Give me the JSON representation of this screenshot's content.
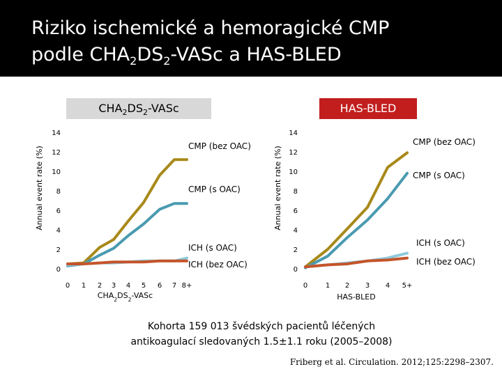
{
  "slide": {
    "title_line1": "Riziko ischemické a hemoragické CMP",
    "title_line2_pre": "podle CHA",
    "title_line2_sub1": "2",
    "title_line2_mid": "DS",
    "title_line2_sub2": "2",
    "title_line2_post": "-VASc a HAS-BLED",
    "footnote_line1": "Kohorta 159 013 švédských pacientů léčených",
    "footnote_line2": "antikoagulací sledovaných 1.5±1.1 roku (2005–2008)",
    "citation": "Friberg et al. Circulation. 2012;125:2298–2307."
  },
  "badges": {
    "left": {
      "pre": "CHA",
      "sub1": "2",
      "mid": "DS",
      "sub2": "2",
      "post": "-VASc"
    },
    "right": {
      "label": "HAS-BLED"
    }
  },
  "colors": {
    "cmp_bez_oac": "#a8891a",
    "cmp_s_oac": "#4a9ab0",
    "ich_s_oac": "#8ec9dc",
    "ich_bez_oac": "#c5542a",
    "header_bg": "#000000",
    "badge_red": "#c21e1e",
    "badge_grey": "#d8d8d8"
  },
  "chart_data": [
    {
      "type": "line",
      "ylabel": "Annual event rate (%)",
      "xlabel_pre": "CHA",
      "xlabel_sub1": "2",
      "xlabel_mid": "DS",
      "xlabel_sub2": "2",
      "xlabel_post": "-VASc",
      "ylim": [
        0,
        14
      ],
      "yticks": [
        "0",
        "2",
        "4",
        "6",
        "8",
        "10",
        "12",
        "14"
      ],
      "categories": [
        "0",
        "1",
        "2",
        "3",
        "4",
        "5",
        "6",
        "7",
        "8+"
      ],
      "series": [
        {
          "name": "CMP (bez OAC)",
          "color_key": "cmp_bez_oac",
          "values": [
            0.5,
            0.6,
            2.2,
            3.0,
            4.9,
            6.8,
            9.6,
            11.2,
            11.2
          ]
        },
        {
          "name": "CMP (s OAC)",
          "color_key": "cmp_s_oac",
          "values": [
            0.3,
            0.5,
            1.4,
            2.1,
            3.4,
            4.6,
            6.1,
            6.7,
            6.7
          ]
        },
        {
          "name": "ICH (s OAC)",
          "color_key": "ich_s_oac",
          "values": [
            0.4,
            0.5,
            0.6,
            0.6,
            0.7,
            0.8,
            0.8,
            0.8,
            1.1
          ]
        },
        {
          "name": "ICH (bez OAC)",
          "color_key": "ich_bez_oac",
          "values": [
            0.5,
            0.5,
            0.6,
            0.7,
            0.7,
            0.7,
            0.8,
            0.8,
            0.8
          ]
        }
      ],
      "legend_placement": "right"
    },
    {
      "type": "line",
      "ylabel": "Annual event rate (%)",
      "xlabel": "HAS-BLED",
      "ylim": [
        0,
        14
      ],
      "yticks": [
        "0",
        "2",
        "4",
        "6",
        "8",
        "10",
        "12",
        "14"
      ],
      "categories": [
        "0",
        "1",
        "2",
        "3",
        "4",
        "5+"
      ],
      "series": [
        {
          "name": "CMP (bez OAC)",
          "color_key": "cmp_bez_oac",
          "values": [
            0.2,
            2.0,
            4.1,
            6.3,
            10.4,
            11.9
          ]
        },
        {
          "name": "CMP (s OAC)",
          "color_key": "cmp_s_oac",
          "values": [
            0.1,
            1.3,
            3.2,
            5.0,
            7.2,
            9.8
          ]
        },
        {
          "name": "ICH (s OAC)",
          "color_key": "ich_s_oac",
          "values": [
            0.2,
            0.4,
            0.6,
            0.8,
            1.1,
            1.6
          ]
        },
        {
          "name": "ICH (bez OAC)",
          "color_key": "ich_bez_oac",
          "values": [
            0.2,
            0.4,
            0.5,
            0.8,
            0.9,
            1.1
          ]
        }
      ],
      "legend_placement": "right"
    }
  ]
}
